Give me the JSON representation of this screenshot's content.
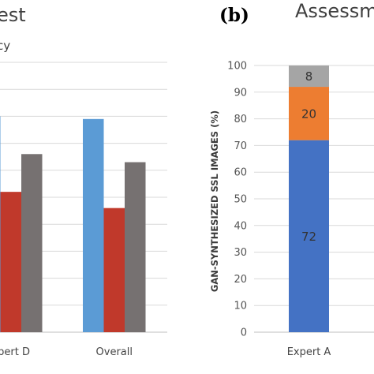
{
  "chart_data": [
    {
      "panel": "",
      "type": "bar",
      "title": "est",
      "subtitle": "cy",
      "categories": [
        "xpert D",
        "Overall"
      ],
      "series": [
        {
          "color": "#5b9bd5",
          "values": [
            80,
            79
          ]
        },
        {
          "color": "#c0392b",
          "values": [
            52,
            46
          ]
        },
        {
          "color": "#767171",
          "values": [
            66,
            63
          ]
        }
      ],
      "ylim": [
        0,
        100
      ]
    },
    {
      "panel": "(b)",
      "type": "bar",
      "stacked": true,
      "title": "Assessm",
      "ylabel": "GAN-SYNTHESIZED SSL IMAGES (%)",
      "categories": [
        "Expert A"
      ],
      "yticks": [
        "0",
        "10",
        "20",
        "30",
        "40",
        "50",
        "60",
        "70",
        "80",
        "90",
        "100"
      ],
      "ylim": [
        0,
        100
      ],
      "series": [
        {
          "color": "#4472c4",
          "values": [
            72
          ],
          "label": "72"
        },
        {
          "color": "#ed7d31",
          "values": [
            20
          ],
          "label": "20"
        },
        {
          "color": "#a5a5a5",
          "values": [
            8
          ],
          "label": "8"
        }
      ]
    }
  ]
}
